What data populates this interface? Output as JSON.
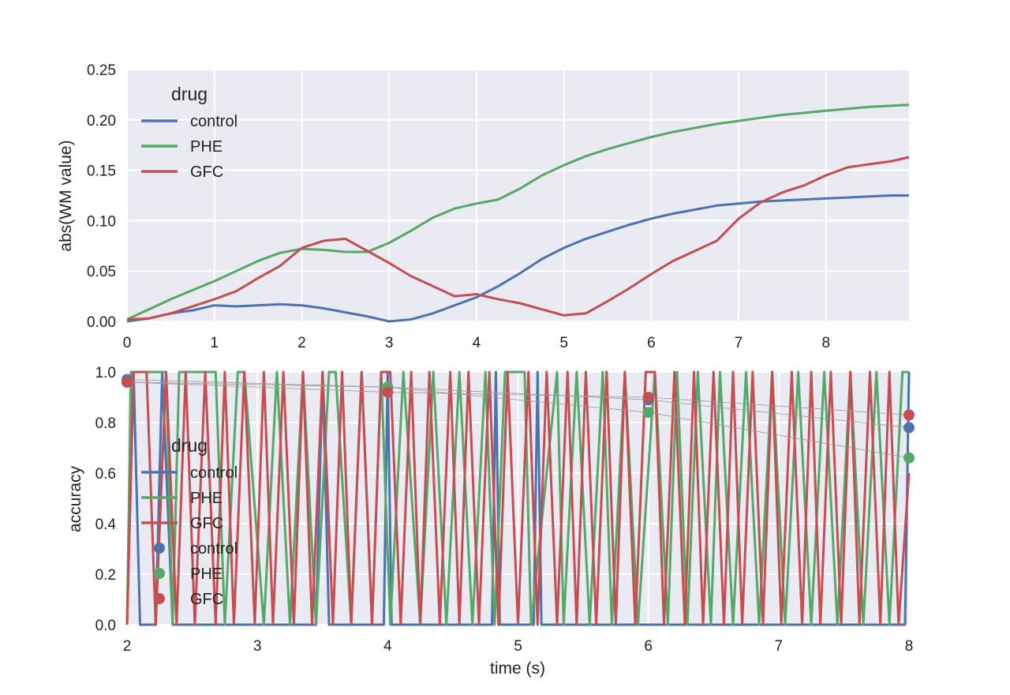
{
  "colors": {
    "background": "#eaeaf2",
    "grid": "#ffffff",
    "control": "#4c72b0",
    "PHE": "#55a868",
    "GFC": "#c44e52",
    "connector": "#999999"
  },
  "chart_data": [
    {
      "type": "line",
      "title": "",
      "xlabel": "",
      "ylabel": "abs(WM value)",
      "xlim": [
        0,
        8.95
      ],
      "ylim": [
        0,
        0.25
      ],
      "xticks": [
        "0",
        "1",
        "2",
        "3",
        "4",
        "5",
        "6",
        "7",
        "8"
      ],
      "yticks": [
        "0.00",
        "0.05",
        "0.10",
        "0.15",
        "0.20",
        "0.25"
      ],
      "grid": true,
      "legend": {
        "title": "drug",
        "position": "top-left",
        "entries": [
          "control",
          "PHE",
          "GFC"
        ]
      },
      "series": [
        {
          "name": "control",
          "x": [
            0,
            0.25,
            0.5,
            0.75,
            1.0,
            1.25,
            1.5,
            1.75,
            2.0,
            2.25,
            2.5,
            2.75,
            3.0,
            3.25,
            3.5,
            3.75,
            4.0,
            4.25,
            4.5,
            4.75,
            5.0,
            5.25,
            5.5,
            5.75,
            6.0,
            6.25,
            6.5,
            6.75,
            7.0,
            7.25,
            7.5,
            7.75,
            8.0,
            8.25,
            8.5,
            8.75,
            8.95
          ],
          "y": [
            0.0,
            0.003,
            0.008,
            0.011,
            0.016,
            0.015,
            0.016,
            0.017,
            0.016,
            0.013,
            0.009,
            0.005,
            0.0,
            0.002,
            0.008,
            0.016,
            0.024,
            0.035,
            0.048,
            0.062,
            0.073,
            0.082,
            0.089,
            0.096,
            0.102,
            0.107,
            0.111,
            0.115,
            0.117,
            0.119,
            0.12,
            0.121,
            0.122,
            0.123,
            0.124,
            0.125,
            0.125
          ]
        },
        {
          "name": "PHE",
          "x": [
            0,
            0.25,
            0.5,
            0.75,
            1.0,
            1.25,
            1.5,
            1.75,
            2.0,
            2.25,
            2.5,
            2.75,
            3.0,
            3.25,
            3.5,
            3.75,
            4.0,
            4.25,
            4.5,
            4.75,
            5.0,
            5.25,
            5.5,
            5.75,
            6.0,
            6.25,
            6.5,
            6.75,
            7.0,
            7.25,
            7.5,
            7.75,
            8.0,
            8.25,
            8.5,
            8.75,
            8.95
          ],
          "y": [
            0.002,
            0.012,
            0.022,
            0.031,
            0.04,
            0.05,
            0.06,
            0.068,
            0.072,
            0.071,
            0.069,
            0.069,
            0.078,
            0.09,
            0.103,
            0.112,
            0.117,
            0.121,
            0.132,
            0.145,
            0.155,
            0.164,
            0.171,
            0.177,
            0.183,
            0.188,
            0.192,
            0.196,
            0.199,
            0.202,
            0.205,
            0.207,
            0.209,
            0.211,
            0.213,
            0.214,
            0.215
          ]
        },
        {
          "name": "GFC",
          "x": [
            0,
            0.25,
            0.5,
            0.75,
            1.0,
            1.25,
            1.5,
            1.75,
            2.0,
            2.25,
            2.5,
            2.75,
            3.0,
            3.25,
            3.5,
            3.75,
            4.0,
            4.25,
            4.5,
            4.75,
            5.0,
            5.25,
            5.5,
            5.75,
            6.0,
            6.25,
            6.5,
            6.75,
            7.0,
            7.25,
            7.5,
            7.75,
            8.0,
            8.25,
            8.5,
            8.75,
            8.95
          ],
          "y": [
            0.002,
            0.003,
            0.008,
            0.015,
            0.022,
            0.03,
            0.043,
            0.055,
            0.073,
            0.08,
            0.082,
            0.07,
            0.058,
            0.045,
            0.035,
            0.025,
            0.027,
            0.022,
            0.018,
            0.012,
            0.006,
            0.008,
            0.02,
            0.033,
            0.047,
            0.06,
            0.07,
            0.08,
            0.102,
            0.118,
            0.128,
            0.135,
            0.145,
            0.153,
            0.156,
            0.159,
            0.163
          ]
        }
      ]
    },
    {
      "type": "line",
      "title": "",
      "xlabel": "time (s)",
      "ylabel": "accuracy",
      "xlim": [
        2,
        8
      ],
      "ylim": [
        0,
        1
      ],
      "xticks": [
        "2",
        "3",
        "4",
        "5",
        "6",
        "7",
        "8"
      ],
      "yticks": [
        "0.0",
        "0.2",
        "0.4",
        "0.6",
        "0.8",
        "1.0"
      ],
      "grid": true,
      "legend": {
        "title": "drug",
        "position": "center-left",
        "entries": [
          "control",
          "PHE",
          "GFC",
          "control",
          "PHE",
          "GFC"
        ]
      },
      "series": [
        {
          "name": "control",
          "x": [
            2.0,
            2.05,
            2.1,
            2.22,
            2.27,
            2.35,
            3.45,
            3.5,
            3.55,
            3.97,
            4.0,
            4.03,
            4.8,
            4.83,
            4.86,
            5.12,
            5.15,
            5.18,
            7.97,
            8.0
          ],
          "y": [
            0,
            1,
            0,
            0,
            1,
            0,
            0,
            1,
            0,
            0,
            1,
            0,
            0,
            1,
            0,
            0,
            1,
            0,
            0,
            1
          ]
        },
        {
          "name": "PHE",
          "x": [
            2.0,
            2.03,
            2.3,
            2.35,
            2.4,
            2.68,
            2.75,
            2.85,
            2.9,
            3.05,
            3.15,
            3.25,
            3.35,
            3.45,
            3.55,
            3.6,
            3.72,
            3.8,
            3.88,
            3.95,
            4.02,
            4.12,
            4.25,
            4.35,
            4.45,
            4.55,
            4.65,
            4.75,
            4.82,
            4.9,
            5.05,
            5.1,
            5.3,
            5.35,
            5.45,
            5.55,
            5.65,
            5.72,
            5.82,
            5.92,
            6.05,
            6.15,
            6.22,
            6.3,
            6.38,
            6.48,
            6.55,
            6.65,
            6.75,
            6.85,
            6.95,
            7.05,
            7.15,
            7.25,
            7.35,
            7.45,
            7.55,
            7.65,
            7.75,
            7.85,
            7.95,
            8.0
          ],
          "y": [
            0,
            1,
            1,
            0,
            1,
            1,
            0,
            1,
            1,
            0,
            1,
            0,
            1,
            0,
            1,
            1,
            0,
            1,
            0,
            1,
            0,
            1,
            0,
            1,
            0,
            1,
            0,
            1,
            0,
            1,
            1,
            0,
            1,
            0,
            1,
            0,
            1,
            0,
            1,
            0,
            1,
            0,
            1,
            0,
            1,
            0,
            1,
            0,
            1,
            0,
            1,
            0,
            1,
            0,
            1,
            0,
            1,
            0,
            1,
            0,
            1,
            1
          ]
        },
        {
          "name": "GFC",
          "x": [
            2.0,
            2.05,
            2.15,
            2.22,
            2.3,
            2.38,
            2.45,
            2.52,
            2.6,
            2.68,
            2.75,
            2.82,
            2.9,
            2.98,
            3.05,
            3.12,
            3.2,
            3.28,
            3.35,
            3.42,
            3.5,
            3.58,
            3.65,
            3.72,
            3.8,
            3.88,
            3.95,
            4.02,
            4.1,
            4.18,
            4.25,
            4.32,
            4.4,
            4.48,
            4.55,
            4.62,
            4.7,
            4.78,
            4.85,
            4.92,
            5.0,
            5.08,
            5.15,
            5.22,
            5.3,
            5.38,
            5.45,
            5.52,
            5.6,
            5.68,
            5.75,
            5.82,
            5.9,
            5.98,
            6.05,
            6.12,
            6.2,
            6.28,
            6.35,
            6.42,
            6.5,
            6.58,
            6.65,
            6.72,
            6.8,
            6.88,
            6.95,
            7.02,
            7.1,
            7.18,
            7.25,
            7.32,
            7.4,
            7.48,
            7.55,
            7.62,
            7.7,
            7.78,
            7.85,
            7.92,
            8.0
          ],
          "y": [
            0,
            1,
            1,
            0,
            1,
            0,
            1,
            0,
            1,
            0,
            1,
            0,
            1,
            0,
            1,
            0,
            1,
            0,
            1,
            0,
            1,
            0,
            1,
            0,
            1,
            0,
            1,
            1,
            0,
            1,
            0,
            1,
            0,
            1,
            0,
            1,
            0,
            1,
            0,
            1,
            0,
            1,
            0,
            1,
            0,
            1,
            0,
            1,
            0,
            1,
            0,
            1,
            0,
            1,
            1,
            0,
            1,
            0,
            1,
            0,
            1,
            0,
            1,
            0,
            1,
            0,
            1,
            0,
            1,
            0,
            1,
            0,
            1,
            0,
            1,
            0,
            1,
            0,
            1,
            0,
            0.6
          ]
        }
      ],
      "points": [
        {
          "name": "control",
          "x": [
            2,
            4,
            6,
            8
          ],
          "y": [
            0.97,
            0.94,
            0.89,
            0.78
          ]
        },
        {
          "name": "PHE",
          "x": [
            2,
            4,
            6,
            8
          ],
          "y": [
            0.96,
            0.94,
            0.84,
            0.66
          ]
        },
        {
          "name": "GFC",
          "x": [
            2,
            4,
            6,
            8
          ],
          "y": [
            0.96,
            0.92,
            0.9,
            0.83
          ]
        }
      ]
    }
  ]
}
